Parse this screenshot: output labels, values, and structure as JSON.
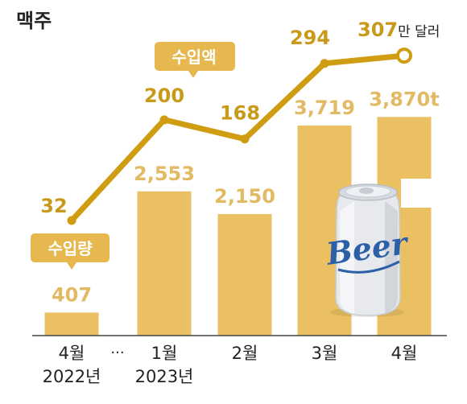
{
  "chart_data": {
    "type": "bar+line",
    "title": "맥주",
    "categories": [
      {
        "month": "4월",
        "year": "2022년"
      },
      {
        "month": "1월",
        "year": "2023년"
      },
      {
        "month": "2월",
        "year": ""
      },
      {
        "month": "3월",
        "year": ""
      },
      {
        "month": "4월",
        "year": ""
      }
    ],
    "gap_marker": "···",
    "bar_series": {
      "name": "수입량",
      "values": [
        407,
        2553,
        2150,
        3719,
        3870
      ],
      "labels": [
        "407",
        "2,553",
        "2,150",
        "3,719",
        "3,870t"
      ]
    },
    "line_series": {
      "name": "수입액",
      "values": [
        32,
        200,
        168,
        294,
        307
      ],
      "labels": [
        "32",
        "200",
        "168",
        "294",
        "307"
      ],
      "last_label_unit": "만 달러"
    },
    "can_text": "Beer",
    "colors": {
      "bar": "#ebc063",
      "bar_label": "#e2ba63",
      "line": "#d09c12",
      "line_label": "#c99a1a",
      "badge": "#e6b84f",
      "axis": "#444444",
      "text": "#222222"
    }
  }
}
